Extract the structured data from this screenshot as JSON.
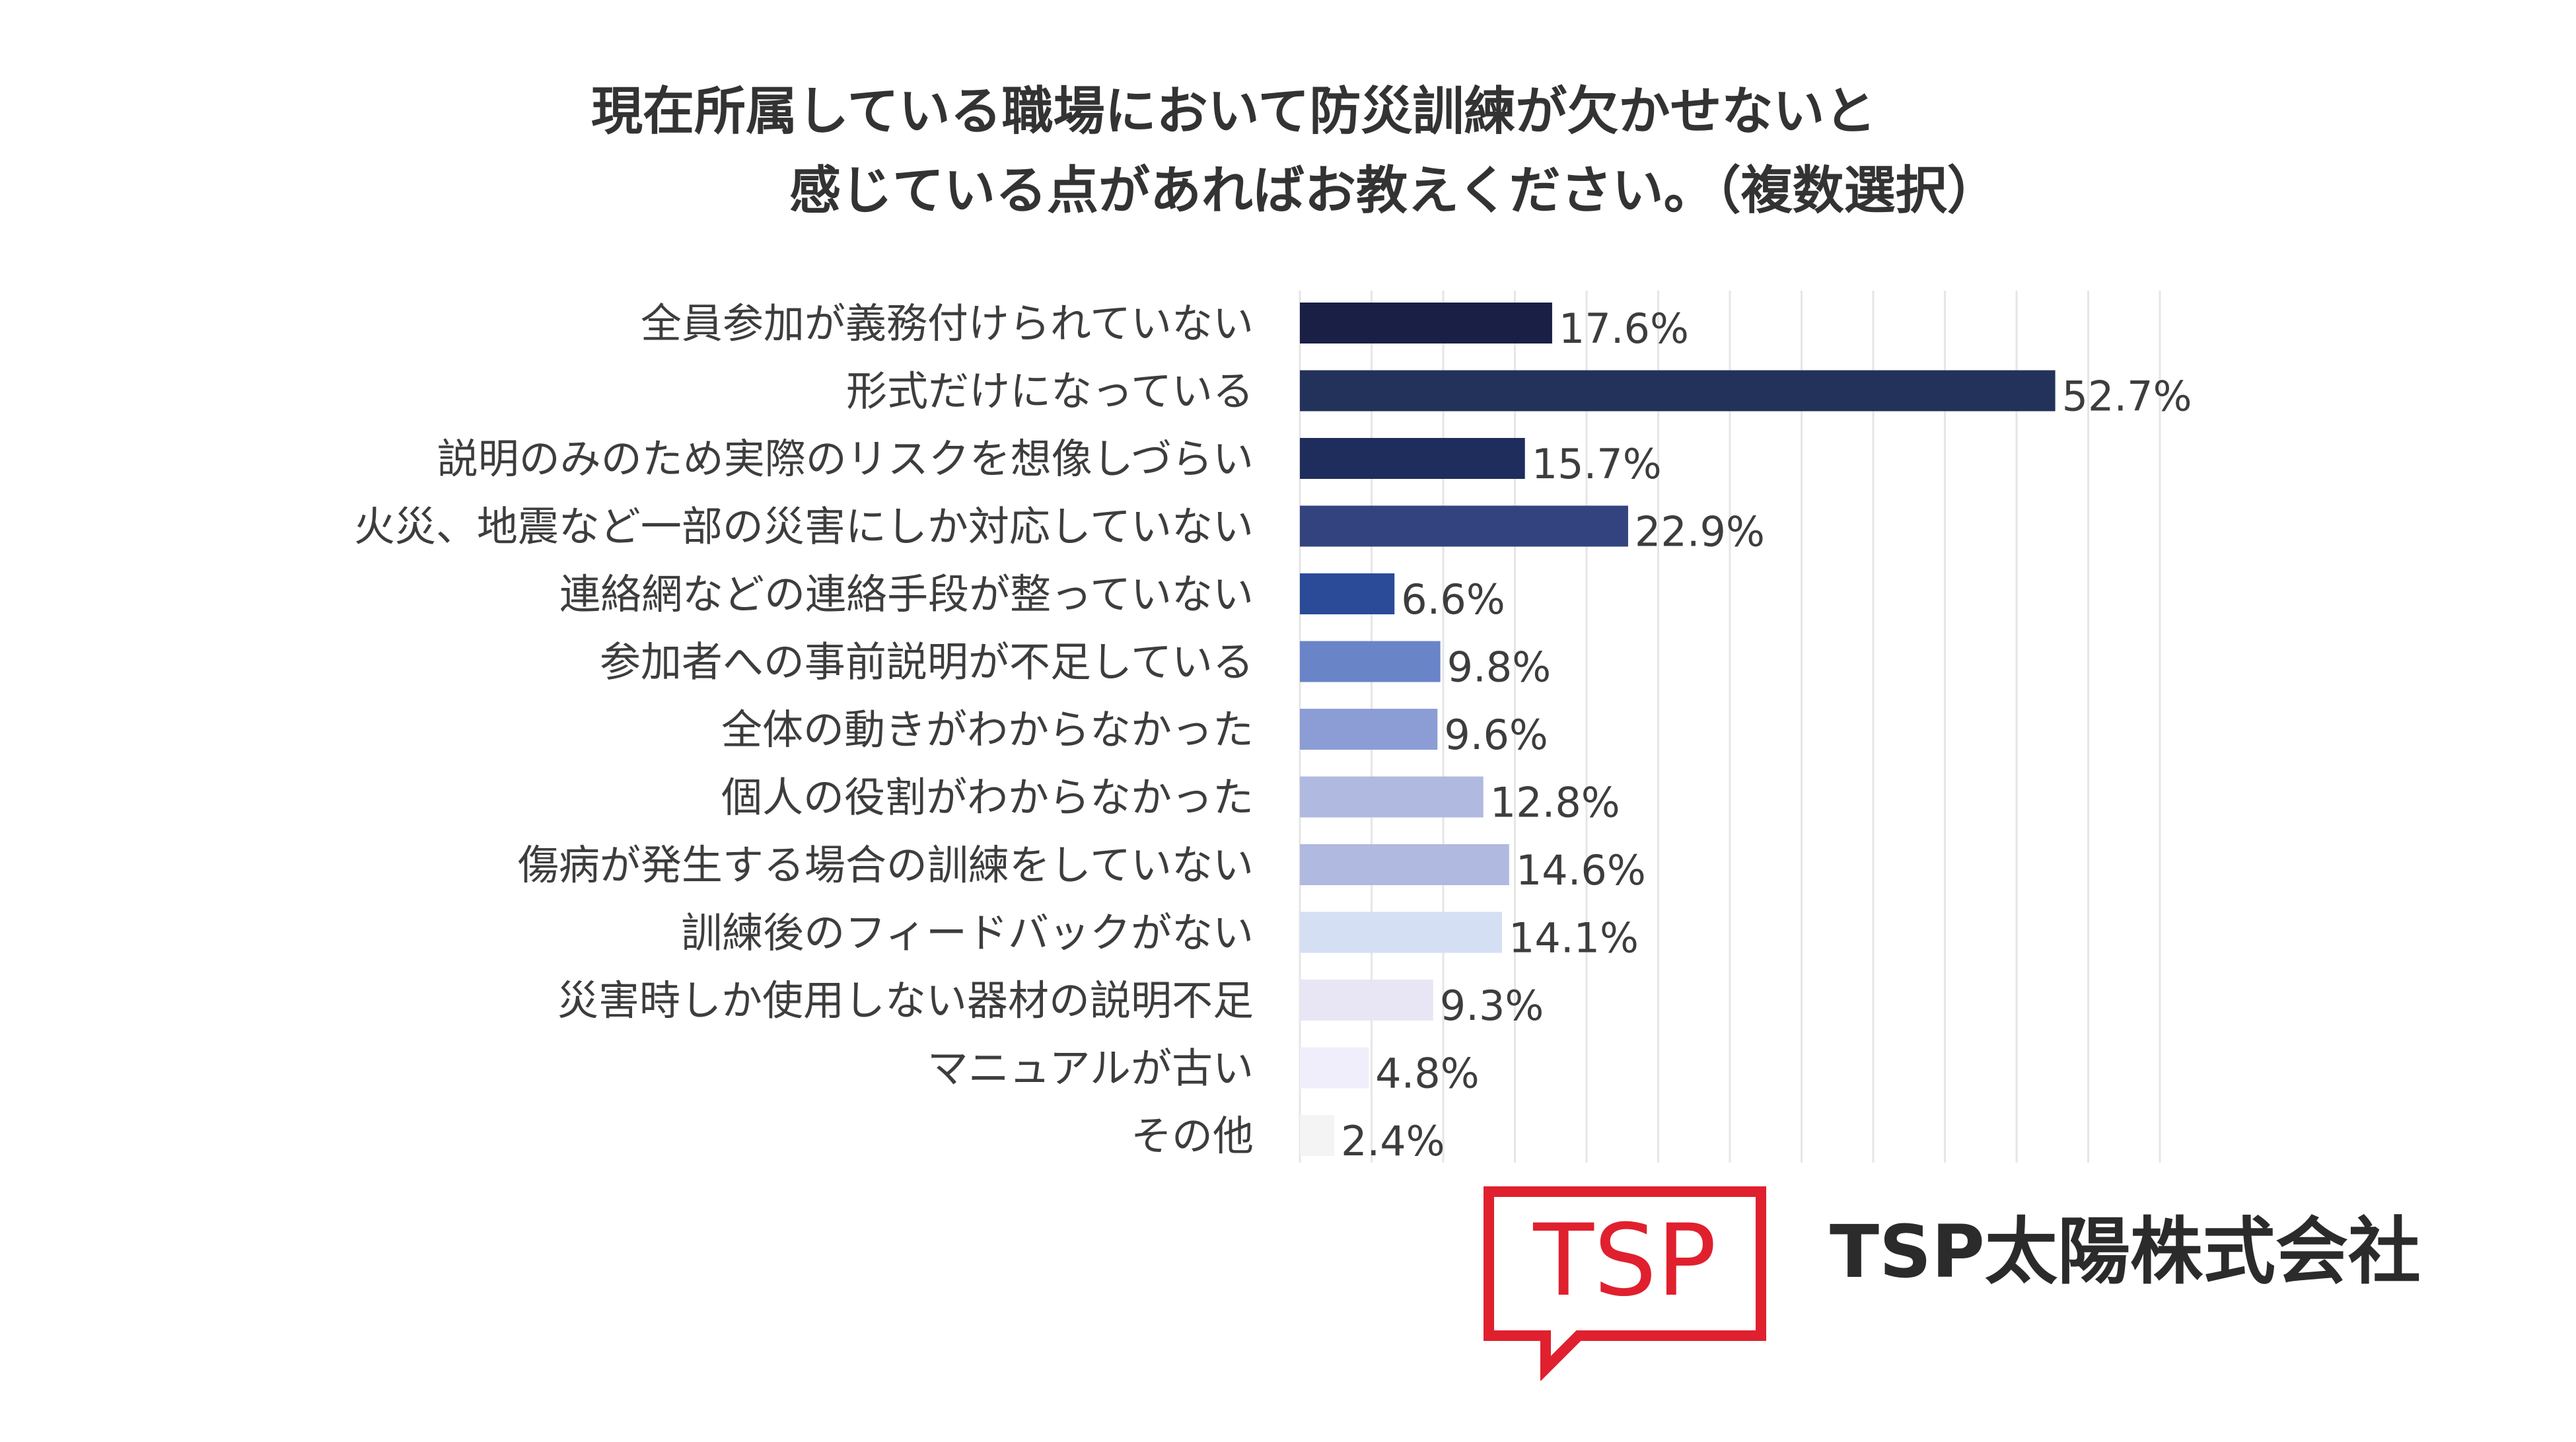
{
  "title": {
    "line1": "現在所属している職場において防災訓練が欠かせないと",
    "line2": "感じている点があればお教えください。（複数選択）"
  },
  "chart_data": {
    "type": "bar",
    "orientation": "horizontal",
    "title": "現在所属している職場において防災訓練が欠かせないと感じている点があればお教えください。（複数選択）",
    "categories": [
      "全員参加が義務付けられていない",
      "形式だけになっている",
      "説明のみのため実際のリスクを想像しづらい",
      "火災、地震など一部の災害にしか対応していない",
      "連絡網などの連絡手段が整っていない",
      "参加者への事前説明が不足している",
      "全体の動きがわからなかった",
      "個人の役割がわからなかった",
      "傷病が発生する場合の訓練をしていない",
      "訓練後のフィードバックがない",
      "災害時しか使用しない器材の説明不足",
      "マニュアルが古い",
      "その他"
    ],
    "values": [
      17.6,
      52.7,
      15.7,
      22.9,
      6.6,
      9.8,
      9.6,
      12.8,
      14.6,
      14.1,
      9.3,
      4.8,
      2.4
    ],
    "value_labels": [
      "17.6%",
      "52.7%",
      "15.7%",
      "22.9%",
      "6.6%",
      "9.8%",
      "9.6%",
      "12.8%",
      "14.6%",
      "14.1%",
      "9.3%",
      "4.8%",
      "2.4%"
    ],
    "bar_colors": [
      "#1a1f45",
      "#22325a",
      "#1f2d5c",
      "#33437f",
      "#2b4a98",
      "#6a84c8",
      "#8c9dd5",
      "#b0b9df",
      "#b0b9df",
      "#d4dff4",
      "#e8e6f5",
      "#f0eefa",
      "#f4f4f4"
    ],
    "xlim": [
      0,
      60
    ],
    "grid": true,
    "legend": "none"
  },
  "logo": {
    "text": "TSP",
    "color": "#e0202e"
  },
  "company": {
    "name": "TSP太陽株式会社"
  }
}
